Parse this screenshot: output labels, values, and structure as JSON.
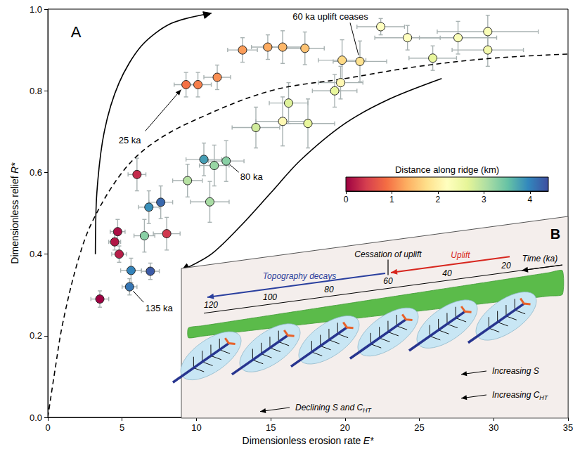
{
  "chart_data": {
    "type": "scatter",
    "panel": "A",
    "xlabel": "Dimensionless erosion rate E*",
    "ylabel": "Dimensionless relief R*",
    "xlim": [
      0,
      35
    ],
    "xticks": [
      0,
      5,
      10,
      15,
      20,
      25,
      30,
      35
    ],
    "ylim": [
      0,
      1
    ],
    "yticks": [
      {
        "value": 0,
        "label": "0.0"
      },
      {
        "value": 0.2,
        "label": "0.2"
      },
      {
        "value": 0.4,
        "label": "0.4"
      },
      {
        "value": 0.6,
        "label": "0.6"
      },
      {
        "value": 0.8,
        "label": "0.8"
      },
      {
        "value": 1,
        "label": "1.0"
      }
    ],
    "grid": false,
    "points": {
      "x": [
        3.5,
        4.5,
        4.7,
        4.8,
        5.6,
        5.5,
        6.9,
        6.5,
        6.8,
        7.6,
        8.0,
        6.0,
        9.4,
        10.9,
        10.5,
        11.2,
        12.0,
        9.3,
        10.1,
        11.4,
        13.1,
        14.8,
        15.8,
        17.3,
        19.8,
        21.0,
        19.7,
        19.3,
        14.0,
        15.8,
        16.2,
        17.5,
        22.4,
        24.2,
        25.9,
        27.6,
        29.6,
        29.6
      ],
      "y": [
        0.29,
        0.43,
        0.455,
        0.4,
        0.36,
        0.32,
        0.358,
        0.445,
        0.515,
        0.527,
        0.45,
        0.595,
        0.58,
        0.528,
        0.632,
        0.617,
        0.628,
        0.815,
        0.815,
        0.833,
        0.9,
        0.907,
        0.907,
        0.904,
        0.875,
        0.872,
        0.82,
        0.8,
        0.71,
        0.725,
        0.77,
        0.72,
        0.957,
        0.93,
        0.88,
        0.93,
        0.945,
        0.9
      ],
      "x_error": [
        0.6,
        0.4,
        0.5,
        0.5,
        0.7,
        0.5,
        0.6,
        0.7,
        0.7,
        0.8,
        0.9,
        0.6,
        1.0,
        1.3,
        1.2,
        1.0,
        1.2,
        0.8,
        0.9,
        0.9,
        1.0,
        1.1,
        1.3,
        1.3,
        1.6,
        1.8,
        1.5,
        1.5,
        1.6,
        1.8,
        1.3,
        1.8,
        1.6,
        2.2,
        1.6,
        2.6,
        3.4,
        2.4
      ],
      "y_error": [
        0.02,
        0.02,
        0.03,
        0.02,
        0.03,
        0.02,
        0.02,
        0.04,
        0.04,
        0.04,
        0.04,
        0.04,
        0.04,
        0.05,
        0.04,
        0.05,
        0.05,
        0.03,
        0.03,
        0.03,
        0.03,
        0.03,
        0.04,
        0.04,
        0.05,
        0.05,
        0.04,
        0.04,
        0.05,
        0.06,
        0.05,
        0.06,
        0.02,
        0.03,
        0.03,
        0.04,
        0.04,
        0.04
      ],
      "distance": [
        0.0,
        0.15,
        0.1,
        0.2,
        4.0,
        4.1,
        4.3,
        3.3,
        3.9,
        4.2,
        0.4,
        0.3,
        3.0,
        3.1,
        3.8,
        3.2,
        3.3,
        0.9,
        1.0,
        1.1,
        1.2,
        1.3,
        1.4,
        1.5,
        1.7,
        1.8,
        2.1,
        2.6,
        2.8,
        2.1,
        2.7,
        2.6,
        2.2,
        2.2,
        2.6,
        2.3,
        2.3,
        2.4
      ]
    },
    "colorbar": {
      "title": "Distance along ridge (km)",
      "range": [
        0,
        4.4
      ],
      "ticks": [
        0,
        1,
        2,
        3,
        4
      ]
    },
    "curves": [
      {
        "line_style": "dashed",
        "x": [
          0,
          0.5,
          1,
          2,
          3,
          5,
          7,
          10,
          15,
          20,
          25,
          30,
          35
        ],
        "y": [
          0,
          0.12,
          0.23,
          0.38,
          0.48,
          0.6,
          0.67,
          0.73,
          0.8,
          0.83,
          0.86,
          0.88,
          0.89
        ]
      },
      {
        "line_style": "solid",
        "marker": "arrow",
        "x": [
          3.2,
          3.3,
          3.8,
          4.8,
          6.3,
          8.3,
          11.0
        ],
        "y": [
          0.4,
          0.55,
          0.7,
          0.82,
          0.91,
          0.965,
          0.99
        ]
      },
      {
        "line_style": "solid",
        "marker": "arrow",
        "x": [
          26.5,
          23,
          20,
          17,
          15,
          13,
          11,
          9
        ],
        "y": [
          0.83,
          0.78,
          0.72,
          0.63,
          0.55,
          0.47,
          0.4,
          0.36
        ]
      }
    ],
    "annotations": [
      {
        "text": "60 ka uplift ceases",
        "x": 21.0,
        "y": 0.872
      },
      {
        "text": "25 ka",
        "x": 9.3,
        "y": 0.815
      },
      {
        "text": "80 ka",
        "x": 12.0,
        "y": 0.628
      },
      {
        "text": "135 ka",
        "x": 5.5,
        "y": 0.32
      }
    ]
  },
  "inset": {
    "label": "B",
    "time_title": "Time (ka)",
    "times": [
      120,
      100,
      80,
      60,
      40,
      20
    ],
    "cessation": {
      "text": "Cessation of uplift",
      "time": 60
    },
    "uplift": "Uplift",
    "decay": "Topography decays",
    "notes": [
      [
        {
          "text": "Increasing S"
        }
      ],
      [
        {
          "text": "Increasing C"
        },
        {
          "text": "HT",
          "sub": true
        }
      ],
      [
        {
          "text": "Declining S and C"
        },
        {
          "text": "HT",
          "sub": true
        }
      ]
    ]
  }
}
